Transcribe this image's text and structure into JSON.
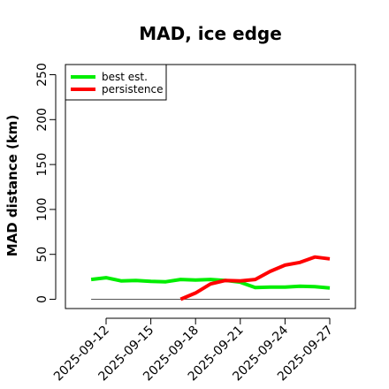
{
  "chart_data": {
    "type": "line",
    "title": "MAD, ice edge",
    "ylabel": "MAD distance (km)",
    "xlabel": "",
    "ylim": [
      0,
      260
    ],
    "yticks": [
      0,
      50,
      100,
      150,
      200,
      250
    ],
    "x_tick_labels": [
      "2025-09-12",
      "2025-09-15",
      "2025-09-18",
      "2025-09-21",
      "2025-09-24",
      "2025-09-27"
    ],
    "x": [
      "2025-09-09",
      "2025-09-10",
      "2025-09-11",
      "2025-09-12",
      "2025-09-13",
      "2025-09-14",
      "2025-09-15",
      "2025-09-16",
      "2025-09-17",
      "2025-09-18",
      "2025-09-19",
      "2025-09-20",
      "2025-09-21",
      "2025-09-22",
      "2025-09-23",
      "2025-09-24",
      "2025-09-25",
      "2025-09-26",
      "2025-09-27",
      "2025-09-28",
      "2025-09-29"
    ],
    "series": [
      {
        "name": "best est.",
        "color": "#00ee00",
        "x": [
          "2025-09-11",
          "2025-09-12",
          "2025-09-13",
          "2025-09-14",
          "2025-09-15",
          "2025-09-16",
          "2025-09-17",
          "2025-09-18",
          "2025-09-19",
          "2025-09-20",
          "2025-09-21",
          "2025-09-22",
          "2025-09-23",
          "2025-09-24",
          "2025-09-25",
          "2025-09-26",
          "2025-09-27"
        ],
        "values": [
          22,
          24,
          20.5,
          21,
          20,
          19.5,
          22,
          21.5,
          22,
          21,
          19,
          13,
          13.5,
          13.5,
          14.5,
          14,
          12.5
        ]
      },
      {
        "name": "persistence",
        "color": "#ff0000",
        "x": [
          "2025-09-17",
          "2025-09-18",
          "2025-09-19",
          "2025-09-20",
          "2025-09-21",
          "2025-09-22",
          "2025-09-23",
          "2025-09-24",
          "2025-09-25",
          "2025-09-26",
          "2025-09-27"
        ],
        "values": [
          0,
          7,
          17,
          21,
          20.5,
          22,
          31,
          38,
          41,
          47,
          45
        ]
      },
      {
        "name": "",
        "color": "#555555",
        "x": [
          "2025-09-11",
          "2025-09-27"
        ],
        "values": [
          0,
          0
        ]
      }
    ],
    "legend": {
      "position": "top-left",
      "entries": [
        "best est.",
        "persistence"
      ]
    },
    "grid": false
  }
}
